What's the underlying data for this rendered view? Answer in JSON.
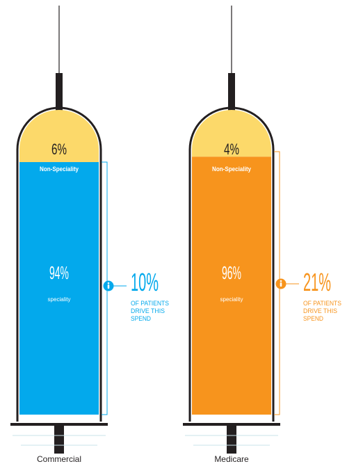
{
  "chart_data": {
    "type": "bar",
    "categories": [
      "Commercial",
      "Medicare"
    ],
    "series": [
      {
        "name": "Non-Speciality",
        "values": [
          6,
          4
        ]
      },
      {
        "name": "speciality",
        "values": [
          94,
          96
        ]
      }
    ],
    "ylim": [
      0,
      100
    ]
  },
  "syringes": [
    {
      "category": "Commercial",
      "non_speciality_label": "6%",
      "non_speciality_name": "Non-Speciality",
      "speciality_label": "94%",
      "speciality_name": "speciality",
      "patients_pct": "10%",
      "patients_line1": "OF PATIENTS",
      "patients_line2": "DRIVE THIS",
      "patients_line3": "SPEND",
      "accent_color": "#03a9ec",
      "person_icon": "person-icon"
    },
    {
      "category": "Medicare",
      "non_speciality_label": "4%",
      "non_speciality_name": "Non-Speciality",
      "speciality_label": "96%",
      "speciality_name": "speciality",
      "patients_pct": "21%",
      "patients_line1": "OF PATIENTS",
      "patients_line2": "DRIVE THIS",
      "patients_line3": "SPEND",
      "accent_color": "#f7941d",
      "person_icon": "person-icon"
    }
  ],
  "colors": {
    "top_fill": "#fcd96a",
    "outline": "#231f20",
    "base_line": "#c9e3ea"
  }
}
